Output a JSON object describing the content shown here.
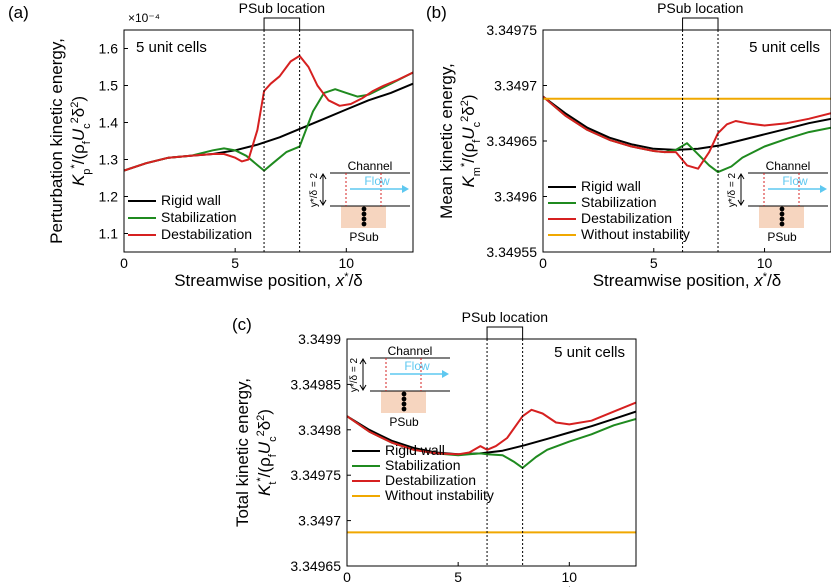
{
  "panel_labels": [
    "(a)",
    "(b)",
    "(c)"
  ],
  "common": {
    "psub_label": "PSub location",
    "annotation": "5 unit cells",
    "xlabel_text": "Streamwise position, ",
    "xlabel_var": "x",
    "xlabel_tail": "/δ",
    "inset": {
      "channel": "Channel",
      "flow": "Flow",
      "psub": "PSub",
      "height": "y*/δ = 2"
    },
    "colors": {
      "rigid": "#000000",
      "stab": "#1f8a1f",
      "destab": "#d62020",
      "none": "#f0a800",
      "inset_fill": "#f6d5bf",
      "flow": "#5ec8f0"
    }
  },
  "chart_data": [
    {
      "panel": "(a)",
      "type": "line",
      "ylabel_line1": "Perturbation kinetic energy,",
      "ylabel_var": "K",
      "ylabel_sub": "p",
      "exponent_label": "×10⁻⁴",
      "xlim": [
        0,
        13
      ],
      "ylim": [
        1.05,
        1.65
      ],
      "xticks": [
        0,
        5,
        10
      ],
      "xtick_labels": [
        "0",
        "5",
        "10"
      ],
      "yticks": [
        1.1,
        1.2,
        1.3,
        1.4,
        1.5,
        1.6
      ],
      "ytick_labels": [
        "1.1",
        "1.2",
        "1.3",
        "1.4",
        "1.5",
        "1.6"
      ],
      "psub_x": [
        6.3,
        7.9
      ],
      "legend": [
        "Rigid wall",
        "Stabilization",
        "Destabilization"
      ],
      "series": [
        {
          "name": "Rigid wall",
          "key": "rigid",
          "x": [
            0,
            1,
            2,
            3,
            4,
            5,
            6,
            7,
            8,
            9,
            10,
            11,
            12,
            13
          ],
          "values": [
            1.27,
            1.29,
            1.305,
            1.31,
            1.315,
            1.325,
            1.34,
            1.36,
            1.385,
            1.41,
            1.435,
            1.46,
            1.48,
            1.505
          ]
        },
        {
          "name": "Stabilization",
          "key": "stab",
          "x": [
            0,
            1,
            2,
            3,
            4,
            4.5,
            5,
            5.5,
            6,
            6.3,
            6.7,
            7.3,
            7.9,
            8.5,
            9,
            9.5,
            10,
            10.5,
            11,
            11.5,
            12,
            12.5,
            13
          ],
          "values": [
            1.27,
            1.29,
            1.305,
            1.31,
            1.325,
            1.33,
            1.325,
            1.31,
            1.285,
            1.27,
            1.29,
            1.32,
            1.335,
            1.43,
            1.48,
            1.49,
            1.48,
            1.47,
            1.475,
            1.49,
            1.505,
            1.52,
            1.535
          ]
        },
        {
          "name": "Destabilization",
          "key": "destab",
          "x": [
            0,
            1,
            2,
            3,
            4,
            4.5,
            5,
            5.3,
            5.6,
            6,
            6.3,
            6.6,
            7,
            7.5,
            7.9,
            8.3,
            8.7,
            9.2,
            9.7,
            10.2,
            10.7,
            11.2,
            11.7,
            12.3,
            13
          ],
          "values": [
            1.27,
            1.29,
            1.305,
            1.31,
            1.315,
            1.315,
            1.305,
            1.295,
            1.3,
            1.38,
            1.485,
            1.505,
            1.525,
            1.565,
            1.58,
            1.55,
            1.5,
            1.46,
            1.445,
            1.45,
            1.465,
            1.485,
            1.5,
            1.515,
            1.535
          ]
        }
      ]
    },
    {
      "panel": "(b)",
      "type": "line",
      "ylabel_line1": "Mean kinetic energy,",
      "ylabel_var": "K",
      "ylabel_sub": "m",
      "xlim": [
        0,
        13
      ],
      "ylim": [
        3.34955,
        3.34975
      ],
      "xticks": [
        0,
        5,
        10
      ],
      "xtick_labels": [
        "0",
        "5",
        "10"
      ],
      "yticks": [
        3.34955,
        3.3496,
        3.34965,
        3.3497,
        3.34975
      ],
      "ytick_labels": [
        "3.34955",
        "3.3496",
        "3.34965",
        "3.3497",
        "3.34975"
      ],
      "psub_x": [
        6.3,
        7.9
      ],
      "legend": [
        "Rigid wall",
        "Stabilization",
        "Destabilization",
        "Without instability"
      ],
      "series": [
        {
          "name": "Rigid wall",
          "key": "rigid",
          "x": [
            0,
            1,
            2,
            3,
            4,
            5,
            6,
            7,
            8,
            9,
            10,
            11,
            12,
            13
          ],
          "values": [
            3.34969,
            3.349675,
            3.349662,
            3.349653,
            3.349647,
            3.349643,
            3.349642,
            3.349643,
            3.349646,
            3.349651,
            3.349656,
            3.349661,
            3.349666,
            3.34967
          ]
        },
        {
          "name": "Stabilization",
          "key": "stab",
          "x": [
            0,
            1,
            2,
            3,
            4,
            5,
            5.5,
            6,
            6.5,
            7,
            7.5,
            7.9,
            8.5,
            9,
            10,
            11,
            12,
            13
          ],
          "values": [
            3.34969,
            3.349673,
            3.34966,
            3.349651,
            3.349645,
            3.349641,
            3.34964,
            3.349642,
            3.349648,
            3.349638,
            3.349628,
            3.349622,
            3.349627,
            3.349635,
            3.349645,
            3.349652,
            3.349658,
            3.349662
          ]
        },
        {
          "name": "Destabilization",
          "key": "destab",
          "x": [
            0,
            1,
            2,
            3,
            4,
            5,
            5.5,
            6,
            6.5,
            7,
            7.5,
            7.9,
            8.3,
            8.7,
            9.2,
            10,
            11,
            12,
            13
          ],
          "values": [
            3.34969,
            3.349673,
            3.34966,
            3.349651,
            3.349645,
            3.349641,
            3.34964,
            3.34964,
            3.349628,
            3.349625,
            3.34964,
            3.349657,
            3.349665,
            3.349668,
            3.349666,
            3.349664,
            3.349666,
            3.34967,
            3.349675
          ]
        },
        {
          "name": "Without instability",
          "key": "none",
          "x": [
            0,
            13
          ],
          "values": [
            3.349688,
            3.349688
          ]
        }
      ]
    },
    {
      "panel": "(c)",
      "type": "line",
      "ylabel_line1": "Total kinetic energy,",
      "ylabel_var": "K",
      "ylabel_sub": "t",
      "xlim": [
        0,
        13
      ],
      "ylim": [
        3.34965,
        3.3499
      ],
      "xticks": [
        0,
        5,
        10
      ],
      "xtick_labels": [
        "0",
        "5",
        "10"
      ],
      "yticks": [
        3.34965,
        3.3497,
        3.34975,
        3.3498,
        3.34985,
        3.3499
      ],
      "ytick_labels": [
        "3.34965",
        "3.3497",
        "3.34975",
        "3.3498",
        "3.34985",
        "3.3499"
      ],
      "psub_x": [
        6.3,
        7.9
      ],
      "legend": [
        "Rigid wall",
        "Stabilization",
        "Destabilization",
        "Without instability"
      ],
      "series": [
        {
          "name": "Rigid wall",
          "key": "rigid",
          "x": [
            0,
            1,
            2,
            3,
            4,
            5,
            6,
            7,
            8,
            9,
            10,
            11,
            12,
            13
          ],
          "values": [
            3.349815,
            3.3498,
            3.349788,
            3.34978,
            3.349775,
            3.349773,
            3.349774,
            3.349777,
            3.349783,
            3.34979,
            3.349797,
            3.349804,
            3.349812,
            3.34982
          ]
        },
        {
          "name": "Stabilization",
          "key": "stab",
          "x": [
            0,
            1,
            2,
            3,
            4,
            5,
            5.5,
            6,
            6.3,
            7,
            7.5,
            7.9,
            8.5,
            9,
            10,
            11,
            12,
            13
          ],
          "values": [
            3.349815,
            3.349798,
            3.349786,
            3.349778,
            3.349774,
            3.349772,
            3.349773,
            3.349774,
            3.349773,
            3.349772,
            3.349765,
            3.349758,
            3.34977,
            3.349778,
            3.349787,
            3.349795,
            3.349805,
            3.349812
          ]
        },
        {
          "name": "Destabilization",
          "key": "destab",
          "x": [
            0,
            1,
            2,
            3,
            4,
            5,
            5.5,
            6,
            6.3,
            6.7,
            7.2,
            7.9,
            8.3,
            8.8,
            9.4,
            10,
            11,
            12,
            13
          ],
          "values": [
            3.349815,
            3.349798,
            3.349786,
            3.349778,
            3.349774,
            3.349773,
            3.349775,
            3.349782,
            3.349778,
            3.349782,
            3.349791,
            3.349815,
            3.349822,
            3.349818,
            3.349808,
            3.349806,
            3.34981,
            3.34982,
            3.34983
          ]
        },
        {
          "name": "Without instability",
          "key": "none",
          "x": [
            0,
            13
          ],
          "values": [
            3.349687,
            3.349687
          ]
        }
      ]
    }
  ]
}
